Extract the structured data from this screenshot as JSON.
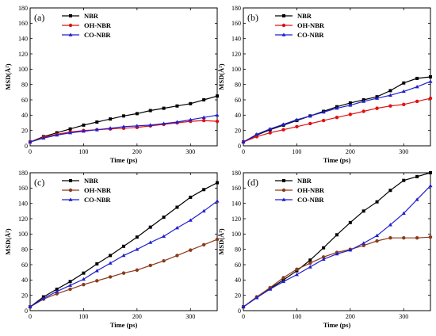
{
  "chart_data": [
    {
      "type": "line",
      "panel_label": "(a)",
      "xlabel": "Time (ps)",
      "ylabel": "MSD(Å²)",
      "xlim": [
        0,
        350
      ],
      "ylim": [
        0,
        180
      ],
      "xticks": [
        0,
        100,
        200,
        300
      ],
      "yticks": [
        0,
        20,
        40,
        60,
        80,
        100,
        120,
        140,
        160,
        180
      ],
      "legend": "top-left",
      "x": [
        0,
        25,
        50,
        75,
        100,
        125,
        150,
        175,
        200,
        225,
        250,
        275,
        300,
        325,
        350
      ],
      "series": [
        {
          "name": "NBR",
          "color": "#000000",
          "marker": "square",
          "values": [
            5,
            12,
            17,
            22,
            27,
            31,
            35,
            39,
            42,
            46,
            49,
            52,
            55,
            60,
            65
          ]
        },
        {
          "name": "OH-NBR",
          "color": "#e01010",
          "marker": "circle",
          "values": [
            5,
            11,
            15,
            18,
            20,
            21,
            22,
            23,
            24,
            26,
            28,
            30,
            32,
            33,
            32
          ]
        },
        {
          "name": "CO-NBR",
          "color": "#1f1fd0",
          "marker": "triangle",
          "values": [
            5,
            10,
            14,
            17,
            19,
            21,
            23,
            25,
            26,
            27,
            29,
            31,
            34,
            37,
            40
          ]
        }
      ]
    },
    {
      "type": "line",
      "panel_label": "(b)",
      "xlabel": "Time (ps)",
      "ylabel": "MSD(Å²)",
      "xlim": [
        0,
        350
      ],
      "ylim": [
        0,
        180
      ],
      "xticks": [
        0,
        100,
        200,
        300
      ],
      "yticks": [
        0,
        20,
        40,
        60,
        80,
        100,
        120,
        140,
        160,
        180
      ],
      "legend": "top-left",
      "x": [
        0,
        25,
        50,
        75,
        100,
        125,
        150,
        175,
        200,
        225,
        250,
        275,
        300,
        325,
        350
      ],
      "series": [
        {
          "name": "NBR",
          "color": "#000000",
          "marker": "square",
          "values": [
            5,
            14,
            21,
            27,
            33,
            39,
            45,
            51,
            56,
            60,
            64,
            72,
            82,
            88,
            90
          ]
        },
        {
          "name": "OH-NBR",
          "color": "#e01010",
          "marker": "circle",
          "values": [
            5,
            12,
            17,
            21,
            25,
            29,
            33,
            37,
            41,
            45,
            49,
            52,
            54,
            58,
            62
          ]
        },
        {
          "name": "CO-NBR",
          "color": "#1f1fd0",
          "marker": "triangle",
          "values": [
            5,
            15,
            22,
            28,
            34,
            39,
            44,
            49,
            53,
            58,
            62,
            66,
            71,
            77,
            84
          ]
        }
      ]
    },
    {
      "type": "line",
      "panel_label": "(c)",
      "xlabel": "Time (ps)",
      "ylabel": "MSD(Å²)",
      "xlim": [
        0,
        350
      ],
      "ylim": [
        0,
        180
      ],
      "xticks": [
        0,
        100,
        200,
        300
      ],
      "yticks": [
        0,
        20,
        40,
        60,
        80,
        100,
        120,
        140,
        160,
        180
      ],
      "legend": "top-left",
      "x": [
        0,
        25,
        50,
        75,
        100,
        125,
        150,
        175,
        200,
        225,
        250,
        275,
        300,
        325,
        350
      ],
      "series": [
        {
          "name": "NBR",
          "color": "#000000",
          "marker": "square",
          "values": [
            5,
            18,
            28,
            38,
            49,
            61,
            72,
            84,
            96,
            109,
            122,
            135,
            148,
            158,
            167
          ]
        },
        {
          "name": "OH-NBR",
          "color": "#8b3a1a",
          "marker": "circle",
          "values": [
            5,
            15,
            22,
            28,
            34,
            39,
            44,
            49,
            53,
            59,
            65,
            72,
            79,
            86,
            93
          ]
        },
        {
          "name": "CO-NBR",
          "color": "#1f1fd0",
          "marker": "triangle",
          "values": [
            5,
            16,
            25,
            33,
            41,
            52,
            62,
            72,
            80,
            89,
            97,
            108,
            118,
            130,
            143
          ]
        }
      ]
    },
    {
      "type": "line",
      "panel_label": "(d)",
      "xlabel": "Time (ps)",
      "ylabel": "MSD(Å²)",
      "xlim": [
        0,
        350
      ],
      "ylim": [
        0,
        180
      ],
      "xticks": [
        0,
        100,
        200,
        300
      ],
      "yticks": [
        0,
        20,
        40,
        60,
        80,
        100,
        120,
        140,
        160,
        180
      ],
      "legend": "top-left",
      "x": [
        0,
        25,
        50,
        75,
        100,
        125,
        150,
        175,
        200,
        225,
        250,
        275,
        300,
        325,
        350
      ],
      "series": [
        {
          "name": "NBR",
          "color": "#000000",
          "marker": "square",
          "values": [
            5,
            17,
            29,
            40,
            52,
            66,
            82,
            99,
            115,
            130,
            142,
            157,
            170,
            175,
            180
          ]
        },
        {
          "name": "OH-NBR",
          "color": "#8b3a1a",
          "marker": "circle",
          "values": [
            5,
            18,
            30,
            43,
            54,
            62,
            70,
            76,
            80,
            85,
            91,
            95,
            95,
            95,
            96
          ]
        },
        {
          "name": "CO-NBR",
          "color": "#1f1fd0",
          "marker": "triangle",
          "values": [
            5,
            17,
            28,
            38,
            47,
            57,
            67,
            74,
            79,
            88,
            98,
            112,
            127,
            145,
            163
          ]
        }
      ]
    }
  ]
}
